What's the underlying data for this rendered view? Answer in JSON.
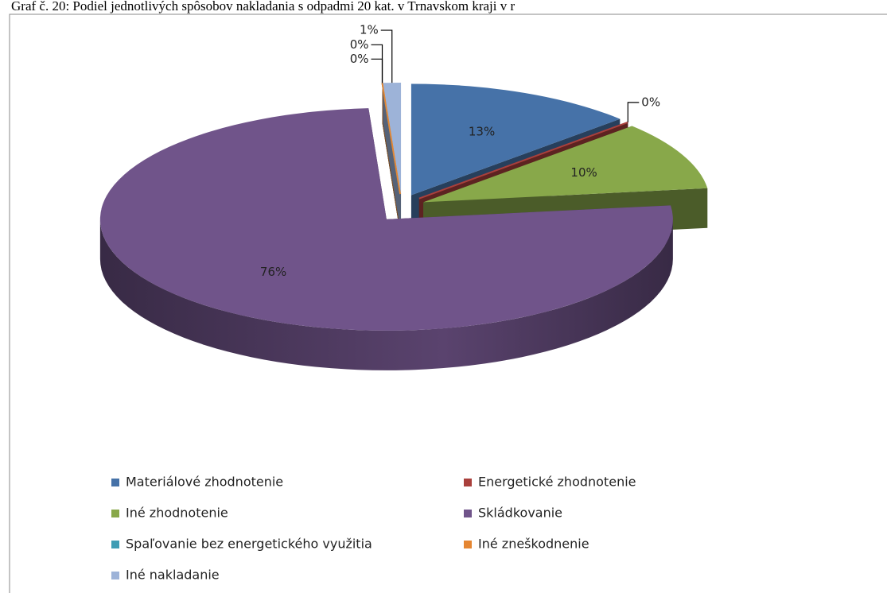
{
  "chart_data": {
    "type": "pie",
    "title": "Graf č. 20: Podiel jednotlivých spôsobov nakladania s odpadmi 20 kat. v Trnavskom kraji v r",
    "categories": [
      "Materiálové zhodnotenie",
      "Energetické zhodnotenie",
      "Iné zhodnotenie",
      "Skládkovanie",
      "Spaľovanie bez energetického využitia",
      "Iné zneškodnenie",
      "Iné nakladanie"
    ],
    "values": [
      13,
      0,
      10,
      76,
      0,
      0,
      1
    ],
    "value_labels": [
      "13%",
      "0%",
      "10%",
      "76%",
      "0%",
      "0%",
      "1%"
    ],
    "colors": [
      "#4672a8",
      "#a9403c",
      "#88a84a",
      "#70548a",
      "#3e9cb4",
      "#e58632",
      "#9db3d8"
    ],
    "legend": "bottom"
  }
}
